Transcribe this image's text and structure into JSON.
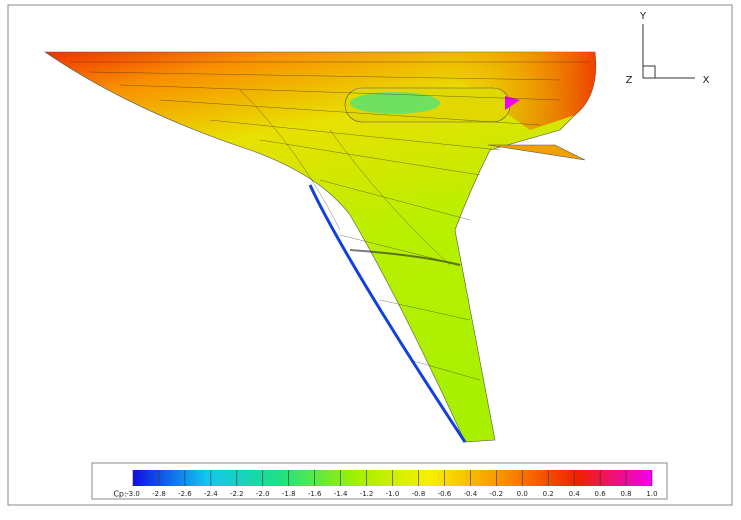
{
  "chart_data": {
    "type": "contour",
    "axis_labels": {
      "x": "X",
      "y": "Y",
      "z": "Z"
    },
    "colorbar": {
      "label": "Cp:",
      "zlim": [
        -3.0,
        1.0
      ],
      "colors": [
        "#1010e0",
        "#10c8f0",
        "#20e080",
        "#a0f000",
        "#f8f000",
        "#f89000",
        "#f02000",
        "#f000f0"
      ],
      "ticks": [
        {
          "value": -3.0,
          "label": "-3.0"
        },
        {
          "value": -2.8,
          "label": "-2.8"
        },
        {
          "value": -2.6,
          "label": "-2.6"
        },
        {
          "value": -2.4,
          "label": "-2.4"
        },
        {
          "value": -2.2,
          "label": "-2.2"
        },
        {
          "value": -2.0,
          "label": "-2.0"
        },
        {
          "value": -1.8,
          "label": "-1.8"
        },
        {
          "value": -1.6,
          "label": "-1.6"
        },
        {
          "value": -1.4,
          "label": "-1.4"
        },
        {
          "value": -1.2,
          "label": "-1.2"
        },
        {
          "value": -1.0,
          "label": "-1.0"
        },
        {
          "value": -0.8,
          "label": "-0.8"
        },
        {
          "value": -0.6,
          "label": "-0.6"
        },
        {
          "value": -0.4,
          "label": "-0.4"
        },
        {
          "value": -0.2,
          "label": "-0.2"
        },
        {
          "value": 0.0,
          "label": "0.0"
        },
        {
          "value": 0.2,
          "label": "0.2"
        },
        {
          "value": 0.4,
          "label": "0.4"
        },
        {
          "value": 0.6,
          "label": "0.6"
        },
        {
          "value": 0.8,
          "label": "0.8"
        },
        {
          "value": 1.0,
          "label": "1.0"
        }
      ]
    }
  }
}
